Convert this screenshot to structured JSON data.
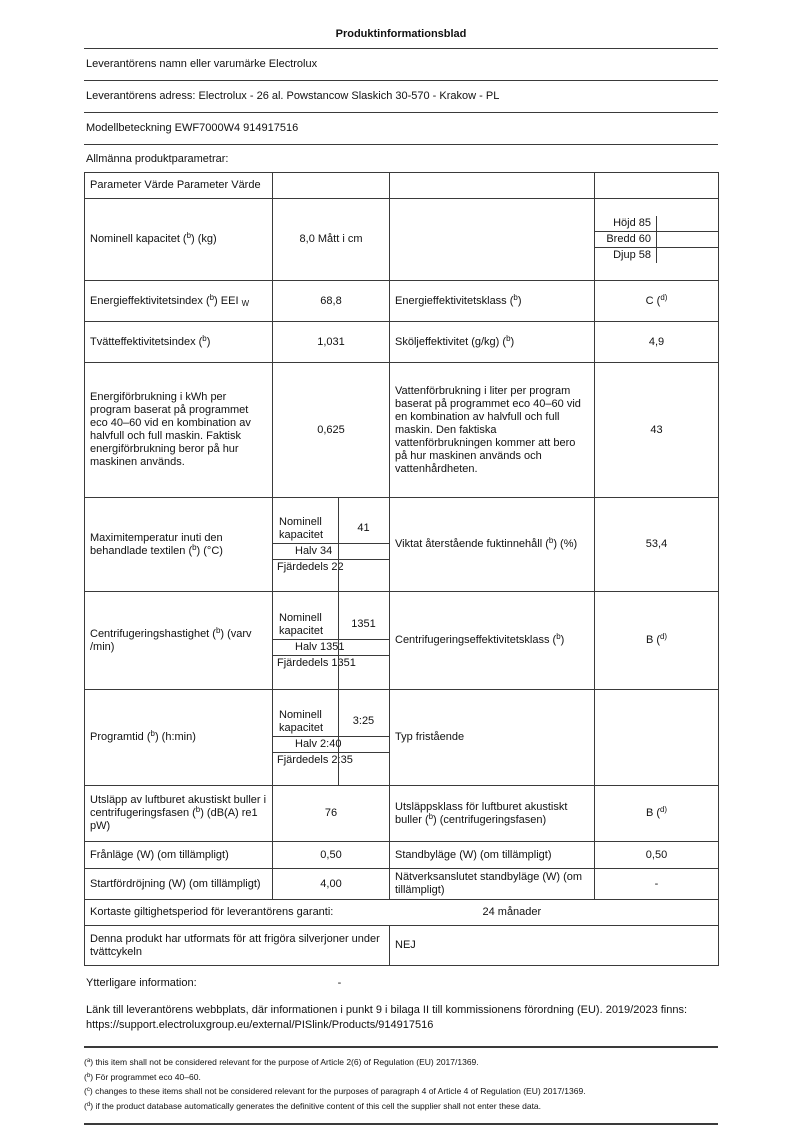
{
  "doc": {
    "title": "Produktinformationsblad",
    "supplier_name": "Leverantörens namn eller varumärke Electrolux",
    "supplier_address": "Leverantörens adress: Electrolux - 26 al. Powstancow Slaskich 30-570 - Krakow - PL",
    "model": "Modellbeteckning EWF7000W4 914917516",
    "section_heading": "Allmänna produktparametrar:"
  },
  "table": {
    "header": "Parameter Värde Parameter Värde",
    "capacity": {
      "label": "Nominell kapacitet (^{b}) (kg)",
      "value": "8,0 Mått i cm",
      "dims": [
        {
          "label": "Höjd 85",
          "value": ""
        },
        {
          "label": "Bredd 60",
          "value": ""
        },
        {
          "label": "Djup 58",
          "value": ""
        }
      ]
    },
    "eei": {
      "label": "Energieffektivitetsindex (^{b}) EEI _{W}",
      "value": "68,8",
      "label2": "Energieffektivitetsklass (^{b})",
      "value2": "C (^{d)}"
    },
    "wash": {
      "label": "Tvätteffektivitetsindex (^{b})",
      "value": "1,031",
      "label2": "Sköljeffektivitet (g/kg) (^{b})",
      "value2": "4,9"
    },
    "energy": {
      "label": "Energiförbrukning i kWh per program baserat på programmet eco 40–60 vid en kombination av halvfull och full maskin. Faktisk energiförbrukning beror på hur maskinen används.",
      "value": "0,625",
      "label2": "Vattenförbrukning i liter per program baserat på programmet eco 40–60 vid en kombination av halvfull och full maskin. Den faktiska vattenförbrukningen kommer att bero på hur maskinen används och vattenhårdheten.",
      "value2": "43"
    },
    "maxtemp": {
      "label": "Maximitemperatur inuti den behandlade textilen (^{b}) (°C)",
      "sub": [
        {
          "label": "Nominell kapacitet",
          "value": "41"
        },
        {
          "label": "Halv 34"
        },
        {
          "label": "Fjärdedels 22"
        }
      ],
      "label2": "Viktat återstående fuktinnehåll (^{b}) (%)",
      "value2": "53,4"
    },
    "spin": {
      "label": "Centrifugeringshastighet (^{b}) (varv /min)",
      "sub": [
        {
          "label": "Nominell kapacitet",
          "value": "1351"
        },
        {
          "label": "Halv 1351"
        },
        {
          "label": "Fjärdedels 1351"
        }
      ],
      "label2": "Centrifugeringseffektivitetsklass (^{b})",
      "value2": "B (^{d)}"
    },
    "duration": {
      "label": "Programtid (^{b}) (h:min)",
      "sub": [
        {
          "label": "Nominell kapacitet",
          "value": "3:25"
        },
        {
          "label": "Halv 2:40"
        },
        {
          "label": "Fjärdedels 2:35"
        }
      ],
      "label2": "Typ fristående",
      "value2": ""
    },
    "noise": {
      "label": "Utsläpp av luftburet akustiskt buller i centrifugeringsfasen (^{b}) (dB(A) re1 pW)",
      "value": "76",
      "label2": "Utsläppsklass för luftburet akustiskt buller (^{b}) (centrifugeringsfasen)",
      "value2": "B (^{d)}"
    },
    "off_mode": {
      "label": "Frånläge (W) (om tillämpligt)",
      "value": "0,50",
      "label2": "Standbyläge (W) (om tillämpligt)",
      "value2": "0,50"
    },
    "delay_start": {
      "label": "Startfördröjning (W) (om tillämpligt)",
      "value": "4,00",
      "label2": "Nätverksanslutet standbyläge (W) (om tillämpligt)",
      "value2": "-"
    },
    "warranty": {
      "label": "Kortaste giltighetsperiod för leverantörens garanti:",
      "value": "24 månader"
    },
    "silver": {
      "label": "Denna produkt har utformats för att frigöra silverjoner under tvättcykeln",
      "value": "NEJ"
    }
  },
  "extra": {
    "additional_info_label": "Ytterligare information:",
    "additional_info_value": "-",
    "link_intro": "Länk till leverantörens webbplats, där informationen i punkt 9 i bilaga II till kommissionens förordning (EU). 2019/2023 finns:",
    "link_url": "https://support.electroluxgroup.eu/external/PISlink/Products/914917516",
    "footnotes": [
      "(^{a}) this item shall not be considered relevant for the purpose of Article 2(6) of Regulation (EU) 2017/1369.",
      "(^{b}) För programmet eco 40–60.",
      "(^{c}) changes to these items shall not be considered relevant for the purposes of paragraph 4 of Article 4 of Regulation (EU) 2017/1369.",
      "(^{d}) if the product database automatically generates the definitive content of this cell the supplier shall not enter these data."
    ]
  }
}
